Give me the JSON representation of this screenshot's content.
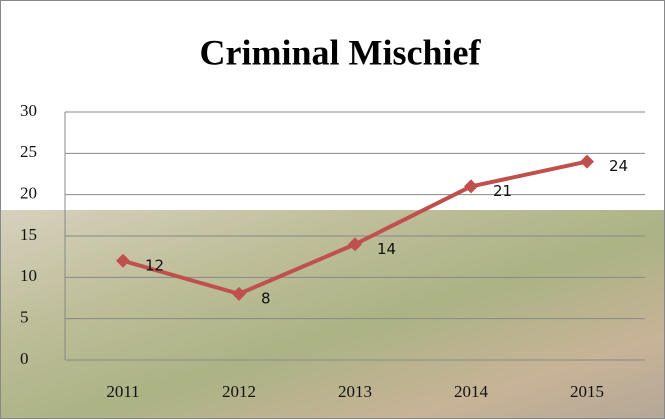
{
  "chart_data": {
    "type": "line",
    "title": "Criminal Mischief",
    "categories": [
      "2011",
      "2012",
      "2013",
      "2014",
      "2015"
    ],
    "series": [
      {
        "name": "Criminal Mischief",
        "color": "#c0504d",
        "values": [
          12,
          8,
          14,
          21,
          24
        ]
      }
    ],
    "ylim": [
      0,
      30
    ],
    "yticks": [
      0,
      5,
      10,
      15,
      20,
      25,
      30
    ],
    "grid": true
  }
}
